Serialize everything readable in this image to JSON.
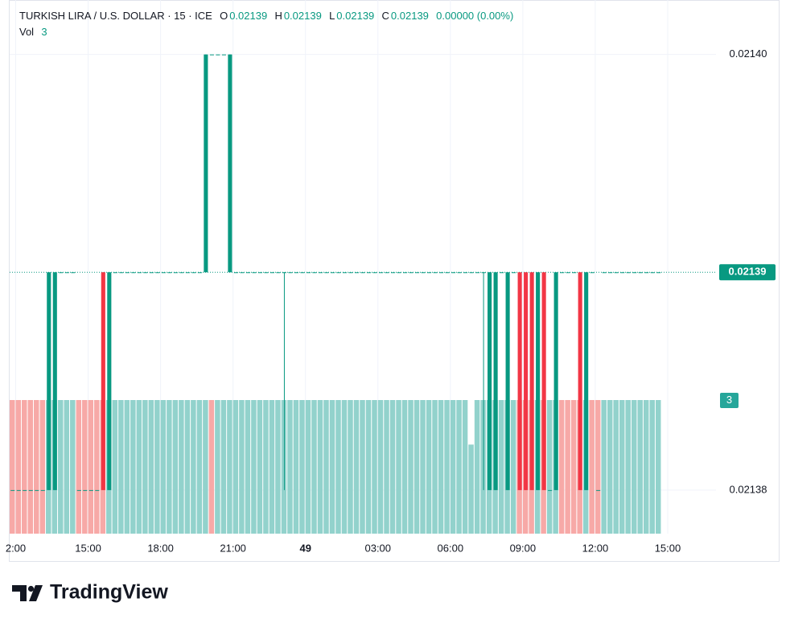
{
  "header": {
    "title": "TURKISH LIRA / U.S. DOLLAR · 15 · ICE",
    "ohlc": [
      {
        "label": "O",
        "value": "0.02139"
      },
      {
        "label": "H",
        "value": "0.02139"
      },
      {
        "label": "L",
        "value": "0.02139"
      },
      {
        "label": "C",
        "value": "0.02139"
      }
    ],
    "change": "0.00000 (0.00%)",
    "volume_label": "Vol",
    "volume_value": "3"
  },
  "branding": "TradingView",
  "chart_data": {
    "type": "candlestick",
    "up_color": "#089981",
    "down_color": "#f23645",
    "open": [
      0.02138,
      0.02138,
      0.02138,
      0.02138,
      0.02138,
      0.02138,
      0.02138,
      0.02138,
      0.02139,
      0.02139,
      0.02139,
      0.02138,
      0.02138,
      0.02138,
      0.02138,
      0.02139,
      0.02138,
      0.02139,
      0.02139,
      0.02139,
      0.02139,
      0.02139,
      0.02139,
      0.02139,
      0.02139,
      0.02139,
      0.02139,
      0.02139,
      0.02139,
      0.02139,
      0.02139,
      0.02139,
      0.02139,
      0.0214,
      0.0214,
      0.0214,
      0.02139,
      0.02139,
      0.02139,
      0.02139,
      0.02139,
      0.02139,
      0.02139,
      0.02139,
      0.02139,
      0.02139,
      0.02139,
      0.02139,
      0.02139,
      0.02139,
      0.02139,
      0.02139,
      0.02139,
      0.02139,
      0.02139,
      0.02139,
      0.02139,
      0.02139,
      0.02139,
      0.02139,
      0.02139,
      0.02139,
      0.02139,
      0.02139,
      0.02139,
      0.02139,
      0.02139,
      0.02139,
      0.02139,
      0.02139,
      0.02139,
      0.02139,
      0.02139,
      0.02139,
      0.02139,
      0.02139,
      0.02139,
      0.02139,
      0.02139,
      0.02138,
      0.02138,
      0.02139,
      0.02138,
      0.02139,
      0.02139,
      0.02139,
      0.02139,
      0.02138,
      0.02139,
      0.02138,
      0.02138,
      0.02139,
      0.02139,
      0.02139,
      0.02139,
      0.02138,
      0.02139,
      0.02138,
      0.02139,
      0.02139,
      0.02139,
      0.02139,
      0.02139,
      0.02139,
      0.02139,
      0.02139,
      0.02139,
      0.02139
    ],
    "high": [
      0.02138,
      0.02138,
      0.02138,
      0.02138,
      0.02138,
      0.02138,
      0.02139,
      0.02139,
      0.02139,
      0.02139,
      0.02139,
      0.02138,
      0.02138,
      0.02138,
      0.02138,
      0.02139,
      0.02139,
      0.02139,
      0.02139,
      0.02139,
      0.02139,
      0.02139,
      0.02139,
      0.02139,
      0.02139,
      0.02139,
      0.02139,
      0.02139,
      0.02139,
      0.02139,
      0.02139,
      0.02139,
      0.0214,
      0.0214,
      0.0214,
      0.0214,
      0.0214,
      0.02139,
      0.02139,
      0.02139,
      0.02139,
      0.02139,
      0.02139,
      0.02139,
      0.02139,
      0.02139,
      0.02139,
      0.02139,
      0.02139,
      0.02139,
      0.02139,
      0.02139,
      0.02139,
      0.02139,
      0.02139,
      0.02139,
      0.02139,
      0.02139,
      0.02139,
      0.02139,
      0.02139,
      0.02139,
      0.02139,
      0.02139,
      0.02139,
      0.02139,
      0.02139,
      0.02139,
      0.02139,
      0.02139,
      0.02139,
      0.02139,
      0.02139,
      0.02139,
      0.02139,
      0.02139,
      0.02139,
      0.02139,
      0.02139,
      0.02139,
      0.02139,
      0.02139,
      0.02139,
      0.02139,
      0.02139,
      0.02139,
      0.02139,
      0.02139,
      0.02139,
      0.02138,
      0.02139,
      0.02139,
      0.02139,
      0.02139,
      0.02139,
      0.02139,
      0.02139,
      0.02138,
      0.02139,
      0.02139,
      0.02139,
      0.02139,
      0.02139,
      0.02139,
      0.02139,
      0.02139,
      0.02139,
      0.02139
    ],
    "low": [
      0.02138,
      0.02138,
      0.02138,
      0.02138,
      0.02138,
      0.02138,
      0.02138,
      0.02138,
      0.02139,
      0.02139,
      0.02139,
      0.02138,
      0.02138,
      0.02138,
      0.02138,
      0.02138,
      0.02138,
      0.02139,
      0.02139,
      0.02139,
      0.02139,
      0.02139,
      0.02139,
      0.02139,
      0.02139,
      0.02139,
      0.02139,
      0.02139,
      0.02139,
      0.02139,
      0.02139,
      0.02139,
      0.02139,
      0.0214,
      0.0214,
      0.0214,
      0.02139,
      0.02139,
      0.02139,
      0.02139,
      0.02139,
      0.02139,
      0.02139,
      0.02139,
      0.02139,
      0.02138,
      0.02139,
      0.02139,
      0.02139,
      0.02139,
      0.02139,
      0.02139,
      0.02139,
      0.02139,
      0.02139,
      0.02139,
      0.02139,
      0.02139,
      0.02139,
      0.02139,
      0.02139,
      0.02139,
      0.02139,
      0.02139,
      0.02139,
      0.02139,
      0.02139,
      0.02139,
      0.02139,
      0.02139,
      0.02139,
      0.02139,
      0.02139,
      0.02139,
      0.02139,
      0.02139,
      0.02139,
      0.02139,
      0.02138,
      0.02138,
      0.02138,
      0.02139,
      0.02138,
      0.02139,
      0.02138,
      0.02138,
      0.02138,
      0.02138,
      0.02138,
      0.02138,
      0.02138,
      0.02139,
      0.02139,
      0.02139,
      0.02138,
      0.02138,
      0.02139,
      0.02138,
      0.02139,
      0.02139,
      0.02139,
      0.02139,
      0.02139,
      0.02139,
      0.02139,
      0.02139,
      0.02139,
      0.02139
    ],
    "close": [
      0.02138,
      0.02138,
      0.02138,
      0.02138,
      0.02138,
      0.02138,
      0.02139,
      0.02139,
      0.02139,
      0.02139,
      0.02139,
      0.02138,
      0.02138,
      0.02138,
      0.02138,
      0.02138,
      0.02139,
      0.02139,
      0.02139,
      0.02139,
      0.02139,
      0.02139,
      0.02139,
      0.02139,
      0.02139,
      0.02139,
      0.02139,
      0.02139,
      0.02139,
      0.02139,
      0.02139,
      0.02139,
      0.0214,
      0.0214,
      0.0214,
      0.0214,
      0.0214,
      0.02139,
      0.02139,
      0.02139,
      0.02139,
      0.02139,
      0.02139,
      0.02139,
      0.02139,
      0.02139,
      0.02139,
      0.02139,
      0.02139,
      0.02139,
      0.02139,
      0.02139,
      0.02139,
      0.02139,
      0.02139,
      0.02139,
      0.02139,
      0.02139,
      0.02139,
      0.02139,
      0.02139,
      0.02139,
      0.02139,
      0.02139,
      0.02139,
      0.02139,
      0.02139,
      0.02139,
      0.02139,
      0.02139,
      0.02139,
      0.02139,
      0.02139,
      0.02139,
      0.02139,
      0.02139,
      0.02139,
      0.02139,
      0.02139,
      0.02139,
      0.02139,
      0.02139,
      0.02139,
      0.02139,
      0.02138,
      0.02138,
      0.02138,
      0.02139,
      0.02138,
      0.02138,
      0.02139,
      0.02139,
      0.02139,
      0.02139,
      0.02138,
      0.02139,
      0.02139,
      0.02138,
      0.02139,
      0.02139,
      0.02139,
      0.02139,
      0.02139,
      0.02139,
      0.02139,
      0.02139,
      0.02139,
      0.02139
    ],
    "volume": [
      3,
      3,
      3,
      3,
      3,
      3,
      3,
      3,
      3,
      3,
      3,
      3,
      3,
      3,
      3,
      3,
      3,
      3,
      3,
      3,
      3,
      3,
      3,
      3,
      3,
      3,
      3,
      3,
      3,
      3,
      3,
      3,
      3,
      3,
      3,
      3,
      3,
      3,
      3,
      3,
      3,
      3,
      3,
      3,
      3,
      3,
      3,
      3,
      3,
      3,
      3,
      3,
      3,
      3,
      3,
      3,
      3,
      3,
      3,
      3,
      3,
      3,
      3,
      3,
      3,
      3,
      3,
      3,
      3,
      3,
      3,
      3,
      3,
      3,
      3,
      3,
      2,
      3,
      3,
      3,
      3,
      3,
      3,
      3,
      3,
      3,
      3,
      3,
      3,
      3,
      3,
      3,
      3,
      3,
      3,
      3,
      3,
      3,
      3,
      3,
      3,
      3,
      3,
      3,
      3,
      3,
      3,
      3
    ],
    "volume_colors": [
      "#f7a9a7",
      "#f7a9a7",
      "#f7a9a7",
      "#f7a9a7",
      "#f7a9a7",
      "#f7a9a7",
      "#92d2cc",
      "#92d2cc",
      "#92d2cc",
      "#92d2cc",
      "#92d2cc",
      "#f7a9a7",
      "#f7a9a7",
      "#f7a9a7",
      "#f7a9a7",
      "#f7a9a7",
      "#92d2cc",
      "#92d2cc",
      "#92d2cc",
      "#92d2cc",
      "#92d2cc",
      "#92d2cc",
      "#92d2cc",
      "#92d2cc",
      "#92d2cc",
      "#92d2cc",
      "#92d2cc",
      "#92d2cc",
      "#92d2cc",
      "#92d2cc",
      "#92d2cc",
      "#92d2cc",
      "#92d2cc",
      "#f7a9a7",
      "#92d2cc",
      "#92d2cc",
      "#92d2cc",
      "#92d2cc",
      "#92d2cc",
      "#92d2cc",
      "#92d2cc",
      "#92d2cc",
      "#92d2cc",
      "#92d2cc",
      "#92d2cc",
      "#92d2cc",
      "#92d2cc",
      "#92d2cc",
      "#92d2cc",
      "#92d2cc",
      "#92d2cc",
      "#92d2cc",
      "#92d2cc",
      "#92d2cc",
      "#92d2cc",
      "#92d2cc",
      "#92d2cc",
      "#92d2cc",
      "#92d2cc",
      "#92d2cc",
      "#92d2cc",
      "#92d2cc",
      "#92d2cc",
      "#92d2cc",
      "#92d2cc",
      "#92d2cc",
      "#92d2cc",
      "#92d2cc",
      "#92d2cc",
      "#92d2cc",
      "#92d2cc",
      "#92d2cc",
      "#92d2cc",
      "#92d2cc",
      "#92d2cc",
      "#92d2cc",
      "#92d2cc",
      "#92d2cc",
      "#92d2cc",
      "#92d2cc",
      "#92d2cc",
      "#92d2cc",
      "#92d2cc",
      "#92d2cc",
      "#f7a9a7",
      "#f7a9a7",
      "#f7a9a7",
      "#92d2cc",
      "#f7a9a7",
      "#92d2cc",
      "#92d2cc",
      "#f7a9a7",
      "#f7a9a7",
      "#f7a9a7",
      "#f7a9a7",
      "#92d2cc",
      "#f7a9a7",
      "#f7a9a7",
      "#92d2cc",
      "#92d2cc",
      "#92d2cc",
      "#92d2cc",
      "#92d2cc",
      "#92d2cc",
      "#92d2cc",
      "#92d2cc",
      "#92d2cc",
      "#92d2cc"
    ],
    "xlim": [
      0,
      117
    ],
    "xticks": [
      {
        "value": 1,
        "label": "2:00"
      },
      {
        "value": 13,
        "label": "15:00"
      },
      {
        "value": 25,
        "label": "18:00"
      },
      {
        "value": 37,
        "label": "21:00"
      },
      49,
      {
        "value": 61,
        "label": "03:00"
      },
      {
        "value": 73,
        "label": "06:00"
      },
      {
        "value": 85,
        "label": "09:00"
      },
      {
        "value": 97,
        "label": "12:00"
      },
      {
        "value": 109,
        "label": "15:00"
      }
    ],
    "bold_xtick": 49,
    "ylim": [
      0.021378,
      0.0214025
    ],
    "yticks": [
      {
        "value": 0.0214,
        "label": "0.02140"
      },
      {
        "value": 0.02138,
        "label": "0.02138"
      }
    ],
    "volume_ylim": [
      0,
      3
    ],
    "last_price": {
      "value": 0.02139,
      "label": "0.02139"
    },
    "last_volume": 3,
    "grid": true
  }
}
